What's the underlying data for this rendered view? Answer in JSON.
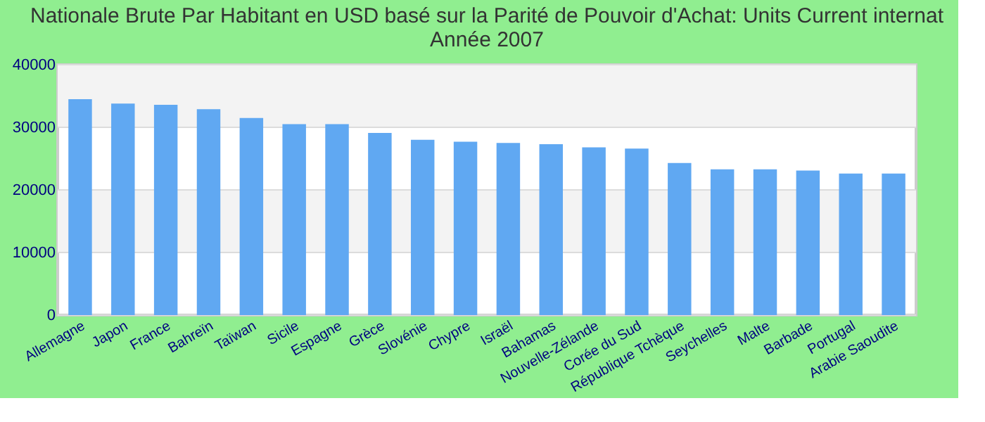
{
  "chart_data": {
    "type": "bar",
    "title": [
      "Nationale Brute Par Habitant en USD basé sur la Parité de Pouvoir d'Achat: Units Current internat",
      "Année 2007"
    ],
    "categories": [
      "Allemagne",
      "Japon",
      "France",
      "Bahreïn",
      "Taïwan",
      "Sicile",
      "Espagne",
      "Grèce",
      "Slovénie",
      "Chypre",
      "Israël",
      "Bahamas",
      "Nouvelle-Zélande",
      "Corée du Sud",
      "République Tchèque",
      "Seychelles",
      "Malte",
      "Barbade",
      "Portugal",
      "Arabie Saoudite"
    ],
    "values": [
      34500,
      33800,
      33600,
      32900,
      31500,
      30500,
      30500,
      29100,
      28000,
      27700,
      27500,
      27300,
      26800,
      26600,
      24300,
      23300,
      23300,
      23100,
      22600,
      22600
    ],
    "color": "#60a8f2",
    "ylim": [
      0,
      40000
    ],
    "yticks": [
      0,
      10000,
      20000,
      30000,
      40000
    ],
    "grid": true
  }
}
